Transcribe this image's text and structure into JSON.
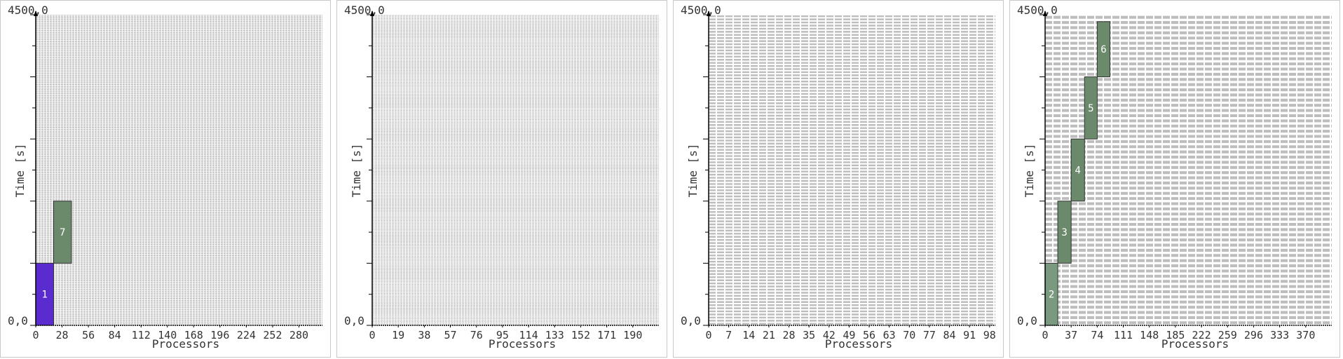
{
  "colors": {
    "grid": "#bdbdbd",
    "axis": "#000000",
    "text": "#333333",
    "job_label": "#ffffff"
  },
  "chart_data": [
    {
      "type": "gantt",
      "xlabel": "Processors",
      "ylabel": "Time [s]",
      "ymax_label": "4500,0",
      "ymin_label": "0,0",
      "xlim": [
        0,
        305
      ],
      "ylim": [
        0,
        4500
      ],
      "xticks": [
        "0",
        "28",
        "56",
        "84",
        "112",
        "140",
        "168",
        "196",
        "224",
        "252",
        "280"
      ],
      "xtick_values": [
        0,
        28,
        56,
        84,
        112,
        140,
        168,
        196,
        224,
        252,
        280
      ],
      "row_count": 305,
      "jobs": [
        {
          "id": "1",
          "proc_start": 0,
          "proc_end": 19,
          "t_start": 0,
          "t_end": 900,
          "color": "#5a2bcf"
        },
        {
          "id": "7",
          "proc_start": 19,
          "proc_end": 38,
          "t_start": 900,
          "t_end": 1800,
          "color": "#6b8a6b"
        }
      ]
    },
    {
      "type": "gantt",
      "xlabel": "Processors",
      "ylabel": "Time [s]",
      "ymax_label": "4500,0",
      "ymin_label": "0,0",
      "xlim": [
        0,
        209
      ],
      "ylim": [
        0,
        4500
      ],
      "xticks": [
        "0",
        "19",
        "38",
        "57",
        "76",
        "95",
        "114",
        "133",
        "152",
        "171",
        "190"
      ],
      "xtick_values": [
        0,
        19,
        38,
        57,
        76,
        95,
        114,
        133,
        152,
        171,
        190
      ],
      "row_count": 209,
      "jobs": []
    },
    {
      "type": "gantt",
      "xlabel": "Processors",
      "ylabel": "Time [s]",
      "ymax_label": "4500,0",
      "ymin_label": "0,0",
      "xlim": [
        0,
        100
      ],
      "ylim": [
        0,
        4500
      ],
      "xticks": [
        "0",
        "7",
        "14",
        "21",
        "28",
        "35",
        "42",
        "49",
        "56",
        "63",
        "70",
        "77",
        "84",
        "91",
        "98"
      ],
      "xtick_values": [
        0,
        7,
        14,
        21,
        28,
        35,
        42,
        49,
        56,
        63,
        70,
        77,
        84,
        91,
        98
      ],
      "row_count": 100,
      "jobs": []
    },
    {
      "type": "gantt",
      "xlabel": "Processors",
      "ylabel": "Time [s]",
      "ymax_label": "4500,0",
      "ymin_label": "0,0",
      "xlim": [
        0,
        407
      ],
      "ylim": [
        0,
        4500
      ],
      "xticks": [
        "0",
        "37",
        "74",
        "111",
        "148",
        "185",
        "222",
        "259",
        "296",
        "333",
        "370"
      ],
      "xtick_values": [
        0,
        37,
        74,
        111,
        148,
        185,
        222,
        259,
        296,
        333,
        370
      ],
      "row_count": 60,
      "jobs": [
        {
          "id": "2",
          "proc_start": 0,
          "proc_end": 18,
          "t_start": 0,
          "t_end": 900,
          "color": "#7a9a80"
        },
        {
          "id": "3",
          "proc_start": 18,
          "proc_end": 37,
          "t_start": 900,
          "t_end": 1800,
          "color": "#6b8a6b"
        },
        {
          "id": "4",
          "proc_start": 37,
          "proc_end": 56,
          "t_start": 1800,
          "t_end": 2700,
          "color": "#6b8a6b"
        },
        {
          "id": "5",
          "proc_start": 56,
          "proc_end": 74,
          "t_start": 2700,
          "t_end": 3600,
          "color": "#6b8a6b"
        },
        {
          "id": "6",
          "proc_start": 74,
          "proc_end": 92,
          "t_start": 3600,
          "t_end": 4400,
          "color": "#6b8a6b"
        }
      ]
    }
  ]
}
